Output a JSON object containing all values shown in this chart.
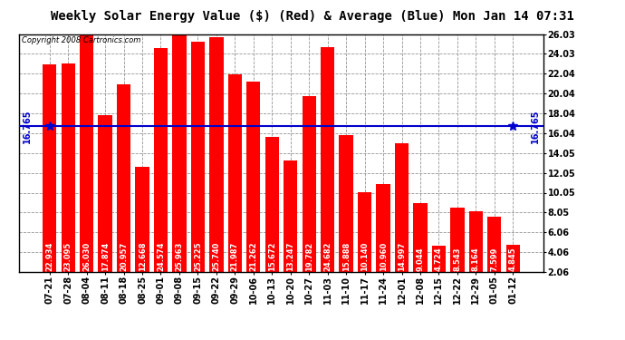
{
  "title": "Weekly Solar Energy Value ($) (Red) & Average (Blue) Mon Jan 14 07:31",
  "copyright": "Copyright 2008 Cartronics.com",
  "categories": [
    "07-21",
    "07-28",
    "08-04",
    "08-11",
    "08-18",
    "08-25",
    "09-01",
    "09-08",
    "09-15",
    "09-22",
    "09-29",
    "10-06",
    "10-13",
    "10-20",
    "10-27",
    "11-03",
    "11-10",
    "11-17",
    "11-24",
    "12-01",
    "12-08",
    "12-15",
    "12-22",
    "12-29",
    "01-05",
    "01-12"
  ],
  "values": [
    22.934,
    23.095,
    26.03,
    17.874,
    20.957,
    12.668,
    24.574,
    25.963,
    25.225,
    25.74,
    21.987,
    21.262,
    15.672,
    13.247,
    19.782,
    24.682,
    15.888,
    10.14,
    10.96,
    14.997,
    9.044,
    4.724,
    8.543,
    8.164,
    7.599,
    4.845
  ],
  "average": 16.765,
  "bar_color": "#FF0000",
  "avg_line_color": "#0000CC",
  "background_color": "#FFFFFF",
  "plot_bg_color": "#FFFFFF",
  "grid_color": "#888888",
  "yticks": [
    2.06,
    4.06,
    6.06,
    8.05,
    10.05,
    12.05,
    14.05,
    16.04,
    18.04,
    20.04,
    22.04,
    24.03,
    26.03
  ],
  "ylim": [
    2.06,
    26.03
  ],
  "title_fontsize": 10,
  "label_fontsize": 7,
  "bar_label_fontsize": 6,
  "avg_label": "16.765"
}
